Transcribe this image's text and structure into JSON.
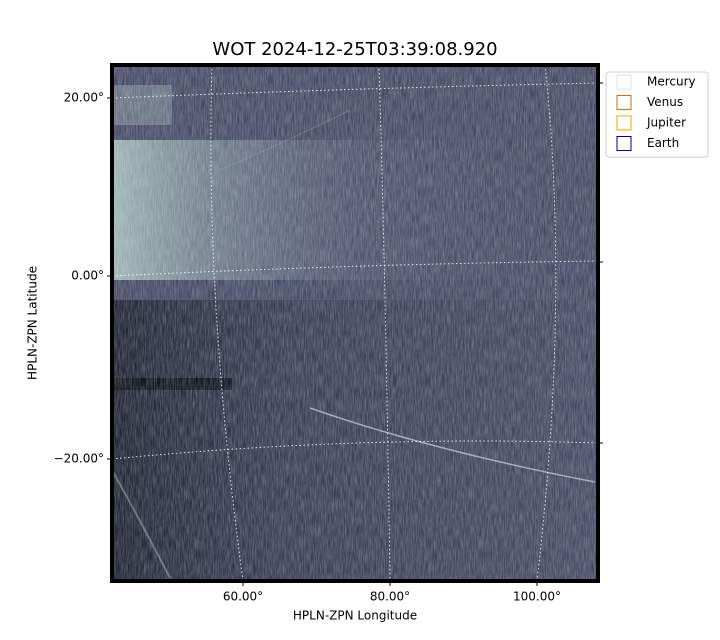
{
  "plot": {
    "title": "WOT 2024-12-25T03:39:08.920",
    "x_label": "HPLN-ZPN Longitude",
    "y_label": "HPLN-ZPN Latitude",
    "x_tick_labels": [
      "60.00°",
      "80.00°",
      "100.00°"
    ],
    "y_tick_labels": [
      "20.00°",
      "0.00°",
      "−20.00°"
    ],
    "legend": [
      {
        "name": "Mercury",
        "color": "#e0e0e0"
      },
      {
        "name": "Venus",
        "color": "#d2691e"
      },
      {
        "name": "Jupiter",
        "color": "#e0a800"
      },
      {
        "name": "Earth",
        "color": "#000080"
      }
    ]
  }
}
